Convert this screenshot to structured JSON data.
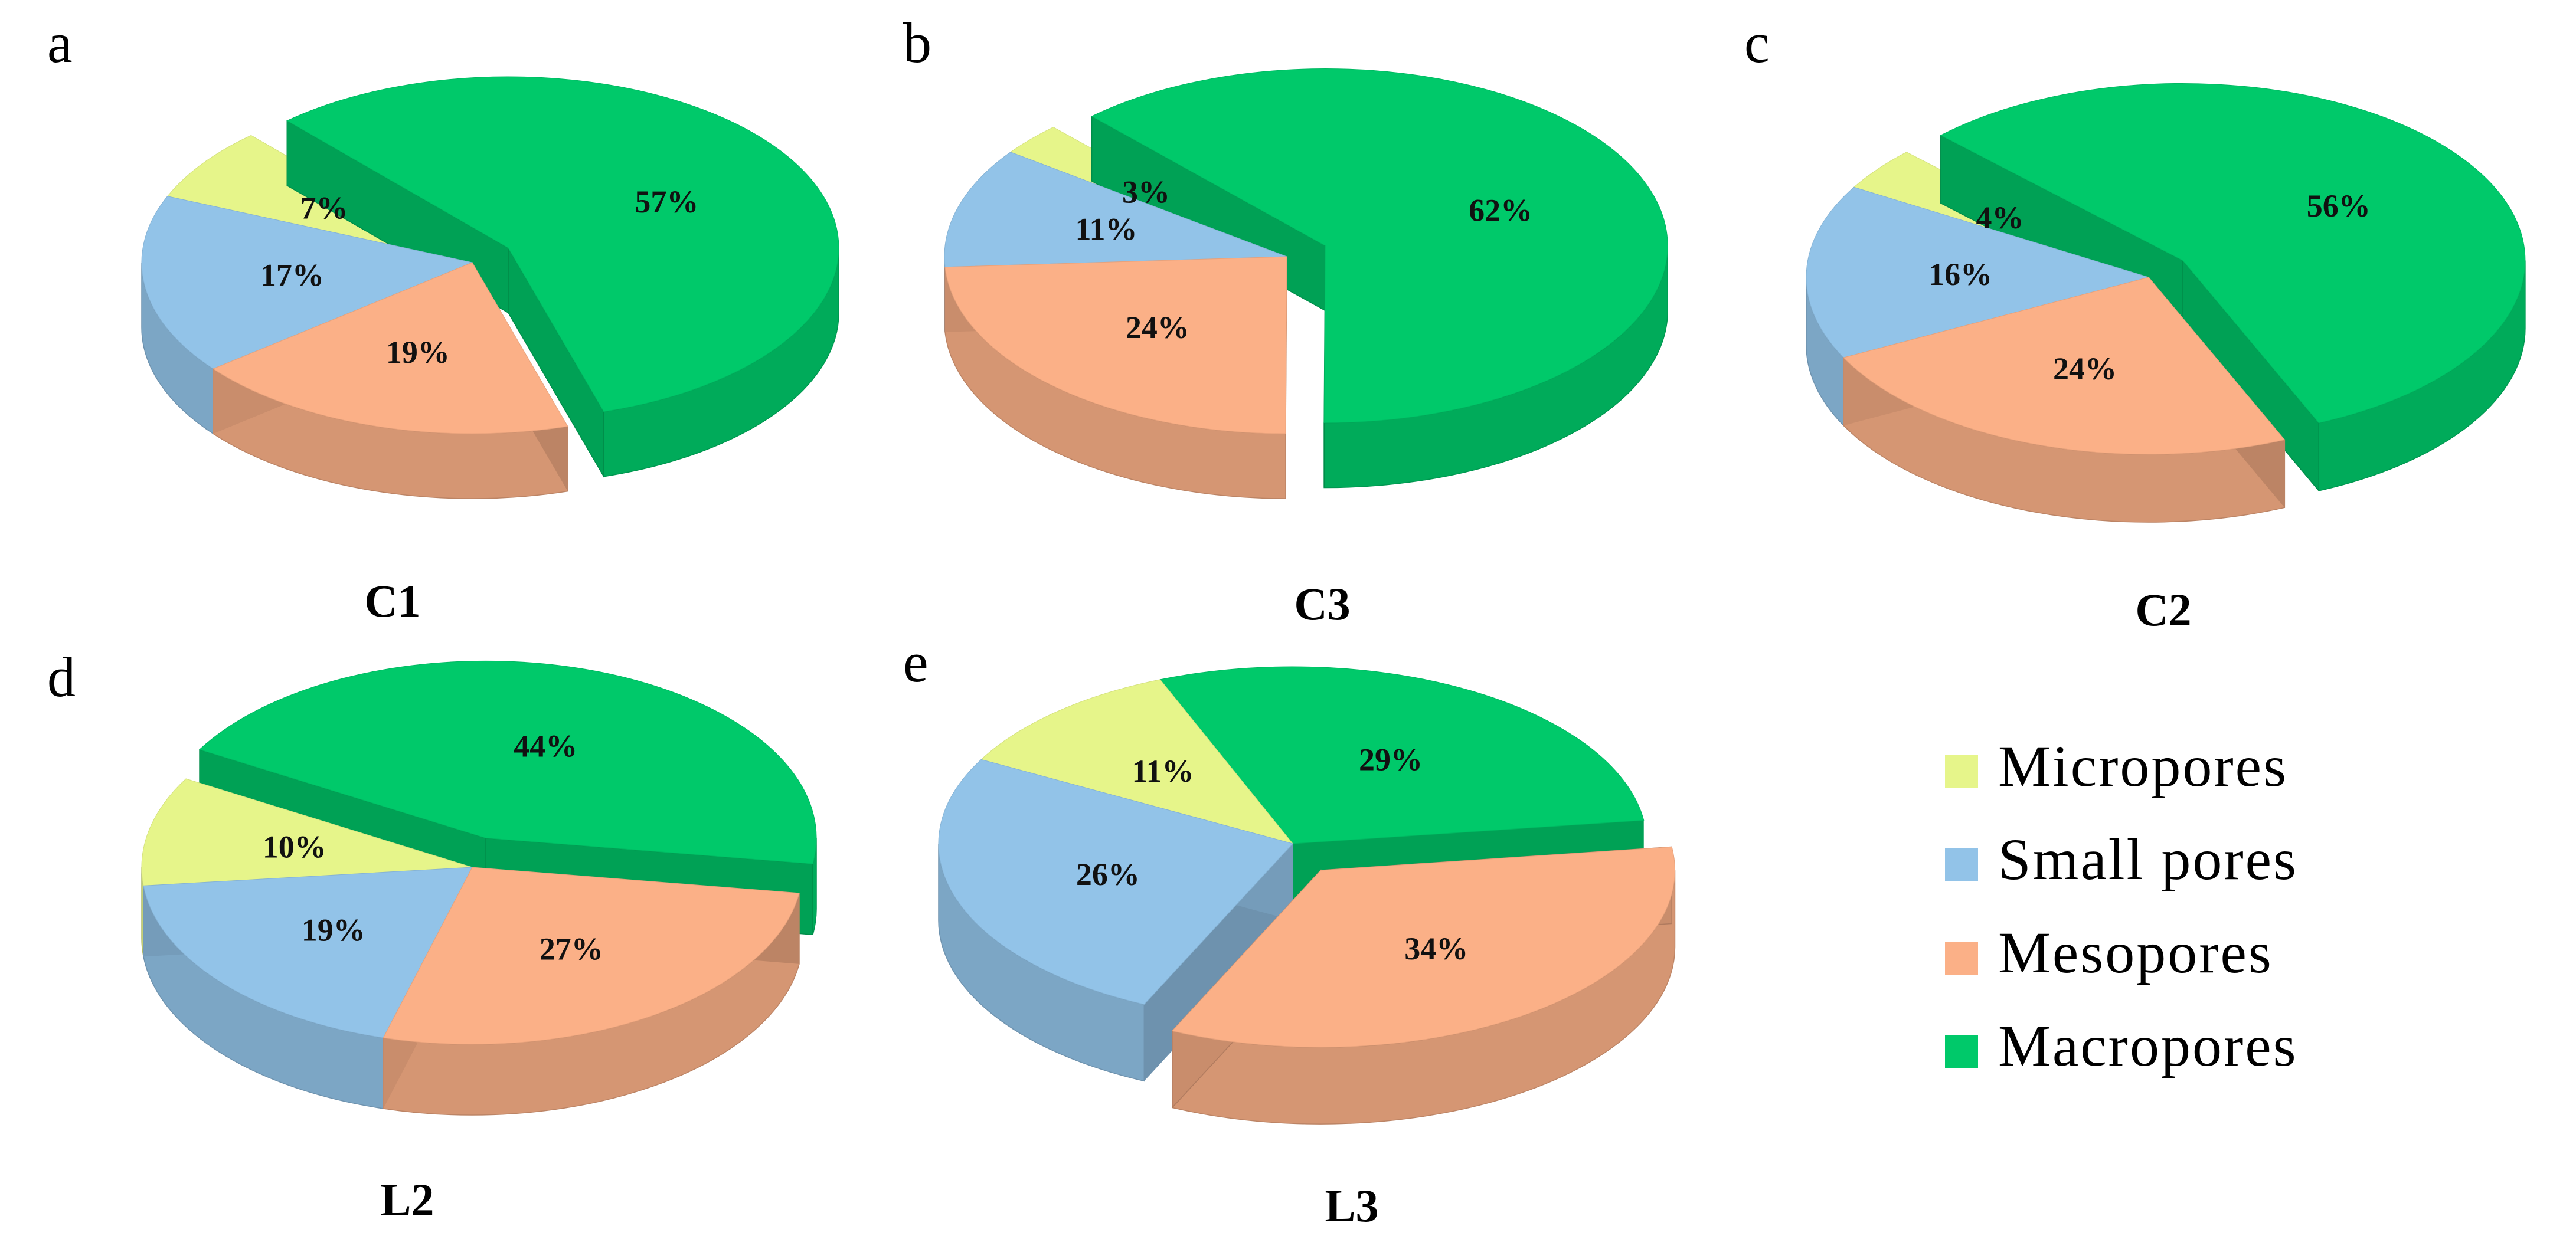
{
  "legend": [
    {
      "key": "micro",
      "label": "Micropores",
      "color": "#E6F58A"
    },
    {
      "key": "small",
      "label": "Small pores",
      "color": "#92C3E8"
    },
    {
      "key": "meso",
      "label": "Mesopores",
      "color": "#FBB087"
    },
    {
      "key": "macro",
      "label": " Macropores",
      "color": "#00C96A"
    }
  ],
  "chart_data": [
    {
      "type": "pie",
      "panel": "a",
      "title": "C1",
      "slices": [
        {
          "category": "micro",
          "value": 7,
          "label": "7%"
        },
        {
          "category": "small",
          "value": 17,
          "label": "17%"
        },
        {
          "category": "meso",
          "value": 19,
          "label": "19%"
        },
        {
          "category": "macro",
          "value": 57,
          "label": "57%",
          "exploded": true
        }
      ]
    },
    {
      "type": "pie",
      "panel": "b",
      "title": "C3",
      "slices": [
        {
          "category": "micro",
          "value": 3,
          "label": "3%"
        },
        {
          "category": "small",
          "value": 11,
          "label": "11%"
        },
        {
          "category": "meso",
          "value": 24,
          "label": "24%"
        },
        {
          "category": "macro",
          "value": 62,
          "label": "62%",
          "exploded": true
        }
      ]
    },
    {
      "type": "pie",
      "panel": "c",
      "title": "C2",
      "slices": [
        {
          "category": "micro",
          "value": 4,
          "label": "4%"
        },
        {
          "category": "small",
          "value": 16,
          "label": "16%"
        },
        {
          "category": "meso",
          "value": 24,
          "label": "24%"
        },
        {
          "category": "macro",
          "value": 56,
          "label": "56%",
          "exploded": true
        }
      ]
    },
    {
      "type": "pie",
      "panel": "d",
      "title": "L2",
      "slices": [
        {
          "category": "micro",
          "value": 10,
          "label": "10%"
        },
        {
          "category": "small",
          "value": 19,
          "label": "19%"
        },
        {
          "category": "meso",
          "value": 27,
          "label": "27%"
        },
        {
          "category": "macro",
          "value": 44,
          "label": "44%",
          "exploded": true
        }
      ]
    },
    {
      "type": "pie",
      "panel": "e",
      "title": "L3",
      "slices": [
        {
          "category": "micro",
          "value": 11,
          "label": "11%"
        },
        {
          "category": "small",
          "value": 26,
          "label": "26%"
        },
        {
          "category": "meso",
          "value": 34,
          "label": "34%",
          "exploded": true
        },
        {
          "category": "macro",
          "value": 29,
          "label": "29%"
        }
      ]
    }
  ]
}
